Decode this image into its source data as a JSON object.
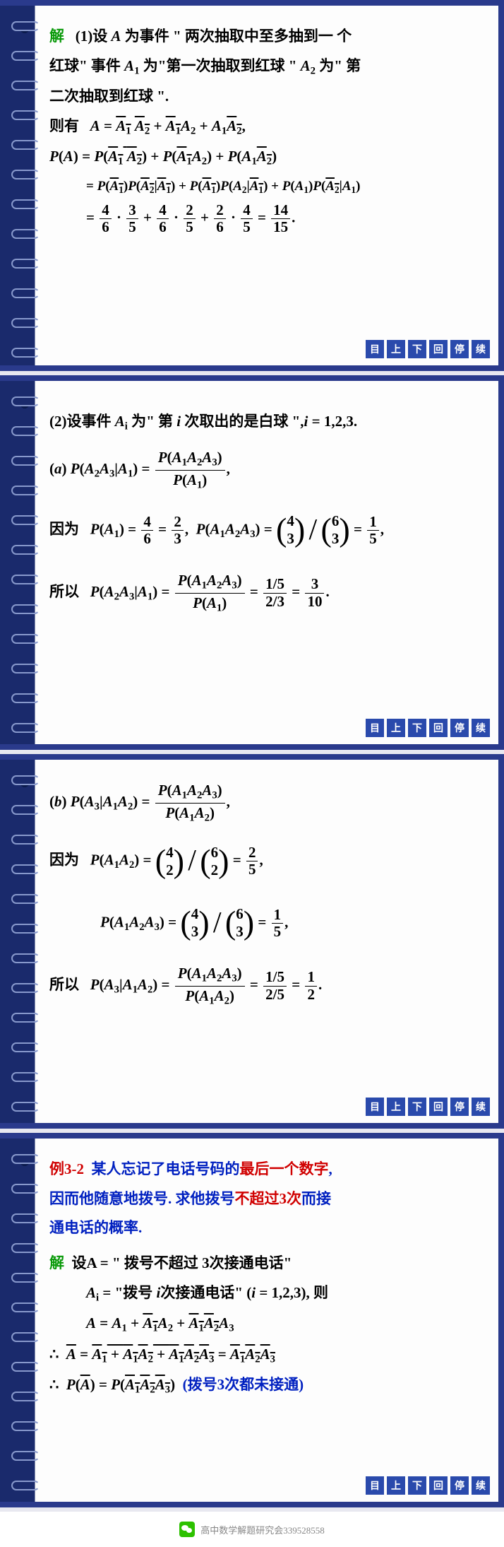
{
  "nav": {
    "b1": "目",
    "b2": "上",
    "b3": "下",
    "b4": "回",
    "b5": "停",
    "b6": "续"
  },
  "s1": {
    "jie": "解",
    "l1a": "(1)设 ",
    "l1b": " 为事件 \" 两次抽取中至多抽到一 个",
    "l2a": "红球\" 事件 ",
    "l2b": " 为\"第一次抽取到红球 \" ",
    "l2c": " 为\" 第",
    "l3": "二次抽取到红球 \".",
    "l4": "则有",
    "eq1": "A = ",
    "l5": "P(A) = P(",
    "eq_final": ".",
    "frac": {
      "n46": "4",
      "d46": "6",
      "n35": "3",
      "d35": "5",
      "n26": "2",
      "d26": "6",
      "n45": "4",
      "d45": "5",
      "n14": "14",
      "d15": "15"
    }
  },
  "s2": {
    "l1a": "(2)设事件 ",
    "l1b": " 为\" 第 ",
    "l1c": " 次取出的是白球 \",",
    "l1d": " = 1,2,3.",
    "la": "(a) ",
    "yin": "因为",
    "suo": "所以",
    "frac": {
      "n4": "4",
      "d6": "6",
      "n2": "2",
      "d3": "3",
      "b43t": "4",
      "b43b": "3",
      "b63t": "6",
      "b63b": "3",
      "n1": "1",
      "d5": "5",
      "n15": "1/5",
      "d23": "2/3",
      "n3f": "3",
      "d10": "10"
    }
  },
  "s3": {
    "lb": "(b) ",
    "yin": "因为",
    "suo": "所以",
    "frac": {
      "b42t": "4",
      "b42b": "2",
      "b62t": "6",
      "b62b": "2",
      "n2": "2",
      "d5": "5",
      "b43t": "4",
      "b43b": "3",
      "b63t": "6",
      "b63b": "3",
      "n1": "1",
      "n15": "1/5",
      "d25": "2/5",
      "n1f": "1",
      "d2f": "2"
    }
  },
  "s4": {
    "exnum": "例3-2",
    "exl1": "某人忘记了电话号码的",
    "exl1r": "最后一个数字",
    "exl1e": ",",
    "exl2": "因而他随意地拨号. 求他拨号",
    "exl2r": "不超过3次",
    "exl2e": "而接",
    "exl3": "通电话的概率.",
    "jie": "解",
    "l1": "设A = \" 拨号不超过 3次接通电话\"",
    "l2a": "A",
    "l2b": " = \"拨号 ",
    "l2c": "次接通电话\" (",
    "l2d": " = 1,2,3), 则",
    "note": "(拨号3次都未接通)"
  },
  "footer": "高中数学解题研究会339528558"
}
